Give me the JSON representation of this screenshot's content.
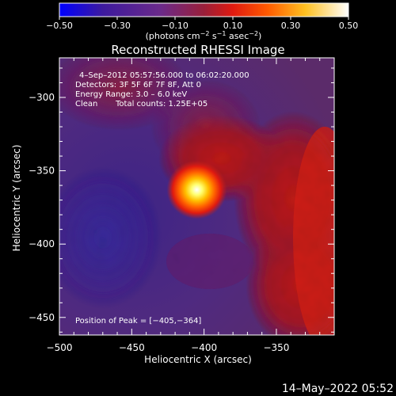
{
  "chart_data": {
    "type": "heatmap",
    "title": "Reconstructed RHESSI Image",
    "xlabel": "Heliocentric X (arcsec)",
    "ylabel": "Heliocentric Y (arcsec)",
    "xlim": [
      -500,
      -310
    ],
    "ylim": [
      -462,
      -273
    ],
    "xticks": [
      {
        "value": -500,
        "label": "−500"
      },
      {
        "value": -450,
        "label": "−450"
      },
      {
        "value": -400,
        "label": "−400"
      },
      {
        "value": -350,
        "label": "−350"
      }
    ],
    "yticks": [
      {
        "value": -300,
        "label": "−300"
      },
      {
        "value": -350,
        "label": "−350"
      },
      {
        "value": -400,
        "label": "−400"
      },
      {
        "value": -450,
        "label": "−450"
      }
    ],
    "colorbar": {
      "range": [
        -0.5,
        0.5
      ],
      "ticks": [
        {
          "value": -0.5,
          "label": "−0.50"
        },
        {
          "value": -0.3,
          "label": "−0.30"
        },
        {
          "value": -0.1,
          "label": "−0.10"
        },
        {
          "value": 0.1,
          "label": "0.10"
        },
        {
          "value": 0.3,
          "label": "0.30"
        },
        {
          "value": 0.5,
          "label": "0.50"
        }
      ],
      "unit_label_parts": [
        "(photons cm",
        "−2",
        " s",
        "−1",
        " asec",
        "−2",
        ")"
      ],
      "colors": [
        "#0000ff",
        "#3d1a9e",
        "#6b2a8a",
        "#b0283a",
        "#ff3000",
        "#ffa000",
        "#ffff40",
        "#ffffff"
      ]
    },
    "annotations": [
      "4–Sep–2012 05:57:56.000 to 06:02:20.000",
      "Detectors: 3F 5F 6F 7F 8F, Att 0",
      "Energy Range: 3.0 – 6.0 keV",
      "Clean",
      "Total counts: 1.25E+05",
      "Position of Peak = [−405,−364]"
    ],
    "peak": {
      "x": -405,
      "y": -364
    },
    "timestamp": "14–May–2022 05:52"
  }
}
